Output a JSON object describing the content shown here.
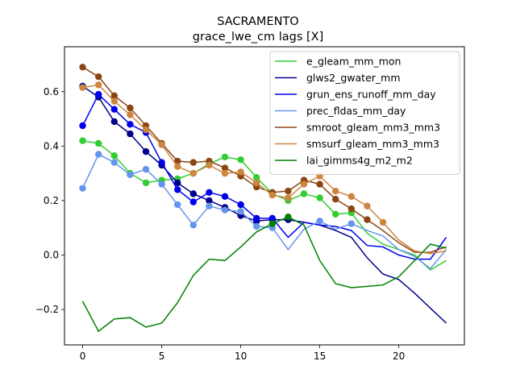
{
  "chart_data": {
    "type": "line",
    "title": "SACRAMENTO",
    "subtitle": "grace_lwe_cm lags [X]",
    "xlabel": "",
    "ylabel": "",
    "xlim": [
      -1.15,
      24.15
    ],
    "ylim": [
      -0.33,
      0.765
    ],
    "xticks": [
      0,
      5,
      10,
      15,
      20
    ],
    "yticks": [
      -0.2,
      0.0,
      0.2,
      0.4,
      0.6
    ],
    "ytick_labels": [
      "−0.2",
      "0.0",
      "0.2",
      "0.4",
      "0.6"
    ],
    "grid": false,
    "legend_position": "top-right",
    "x": [
      0,
      1,
      2,
      3,
      4,
      5,
      6,
      7,
      8,
      9,
      10,
      11,
      12,
      13,
      14,
      15,
      16,
      17,
      18,
      19,
      20,
      21,
      22,
      23
    ],
    "series": [
      {
        "name": "e_gleam_mm_mon",
        "color": "#32cd32",
        "values": [
          0.42,
          0.41,
          0.365,
          0.3,
          0.265,
          0.275,
          0.28,
          0.3,
          0.335,
          0.36,
          0.35,
          0.285,
          0.225,
          0.2,
          0.225,
          0.21,
          0.15,
          0.155,
          0.08,
          0.04,
          0.02,
          0.0,
          -0.055,
          -0.02
        ],
        "markers": [
          0,
          1,
          2,
          3,
          4,
          5,
          6,
          7,
          8,
          9,
          10,
          11,
          12,
          13,
          14,
          15,
          16,
          17
        ]
      },
      {
        "name": "glws2_gwater_mm",
        "color": "#00008b",
        "values": [
          0.62,
          0.58,
          0.49,
          0.445,
          0.38,
          0.33,
          0.265,
          0.225,
          0.2,
          0.175,
          0.145,
          0.125,
          0.13,
          0.13,
          0.12,
          0.11,
          0.09,
          0.065,
          -0.01,
          -0.07,
          -0.09,
          -0.14,
          -0.195,
          -0.25
        ],
        "markers": [
          0,
          1,
          2,
          3,
          4,
          5,
          6,
          7,
          8,
          9,
          10,
          11,
          12,
          13
        ]
      },
      {
        "name": "grun_ens_runoff_mm_day",
        "color": "#0000ee",
        "values": [
          0.475,
          0.59,
          0.535,
          0.48,
          0.45,
          0.34,
          0.24,
          0.195,
          0.23,
          0.215,
          0.185,
          0.135,
          0.135,
          0.065,
          0.12,
          0.11,
          0.105,
          0.09,
          0.035,
          0.03,
          0.0,
          -0.015,
          -0.015,
          0.065
        ],
        "markers": [
          0,
          1,
          2,
          3,
          4,
          5,
          6,
          7,
          8,
          9,
          10,
          11,
          12
        ]
      },
      {
        "name": "prec_fldas_mm_day",
        "color": "#6495ed",
        "values": [
          0.245,
          0.37,
          0.34,
          0.295,
          0.315,
          0.26,
          0.185,
          0.11,
          0.18,
          0.165,
          0.16,
          0.105,
          0.1,
          0.02,
          0.095,
          0.125,
          0.095,
          0.115,
          0.09,
          0.07,
          0.02,
          -0.005,
          -0.05,
          0.02
        ],
        "markers": [
          0,
          1,
          2,
          3,
          4,
          5,
          6,
          7,
          8,
          9,
          10,
          11,
          12,
          15,
          17
        ]
      },
      {
        "name": "smroot_gleam_mm3_mm3",
        "color": "#8b4513",
        "values": [
          0.69,
          0.655,
          0.585,
          0.54,
          0.475,
          0.41,
          0.345,
          0.34,
          0.345,
          0.32,
          0.29,
          0.25,
          0.23,
          0.235,
          0.275,
          0.26,
          0.205,
          0.17,
          0.13,
          0.09,
          0.045,
          0.01,
          0.01,
          0.03
        ],
        "markers": [
          0,
          1,
          2,
          3,
          4,
          5,
          6,
          7,
          8,
          9,
          10,
          11,
          12,
          13,
          14,
          15,
          16,
          17,
          18
        ]
      },
      {
        "name": "smsurf_gleam_mm3_mm3",
        "color": "#cd853f",
        "values": [
          0.615,
          0.625,
          0.565,
          0.515,
          0.46,
          0.405,
          0.325,
          0.3,
          0.33,
          0.3,
          0.305,
          0.265,
          0.22,
          0.21,
          0.26,
          0.29,
          0.235,
          0.215,
          0.18,
          0.12,
          0.055,
          0.015,
          0.005,
          0.015
        ],
        "markers": [
          0,
          1,
          2,
          3,
          4,
          5,
          6,
          7,
          8,
          9,
          10,
          11,
          12,
          13,
          14,
          15,
          16,
          17,
          18,
          19
        ]
      },
      {
        "name": "lai_gimms4g_m2_m2",
        "color": "#008000",
        "values": [
          -0.17,
          -0.28,
          -0.235,
          -0.23,
          -0.265,
          -0.25,
          -0.175,
          -0.075,
          -0.015,
          -0.02,
          0.03,
          0.085,
          0.115,
          0.14,
          0.11,
          -0.02,
          -0.105,
          -0.12,
          -0.115,
          -0.11,
          -0.08,
          -0.02,
          0.04,
          0.025
        ],
        "markers": [
          12,
          13
        ]
      }
    ]
  }
}
